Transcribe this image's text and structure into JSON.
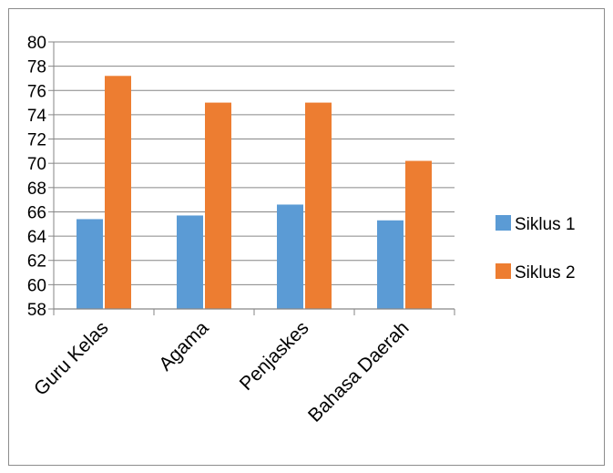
{
  "chart_data": {
    "type": "bar",
    "categories": [
      "Guru Kelas",
      "Agama",
      "Penjaskes",
      "Bahasa Daerah"
    ],
    "series": [
      {
        "name": "Siklus 1",
        "values": [
          65.4,
          65.7,
          66.6,
          65.3
        ],
        "color": "#5B9BD5"
      },
      {
        "name": "Siklus 2",
        "values": [
          77.2,
          75.0,
          75.0,
          70.2
        ],
        "color": "#ED7D31"
      }
    ],
    "ylim": [
      58,
      80
    ],
    "y_ticks": [
      58,
      60,
      62,
      64,
      66,
      68,
      70,
      72,
      74,
      76,
      78,
      80
    ],
    "grid": true,
    "legend": "right",
    "gridline_color": "#868686",
    "axis_color": "#868686"
  }
}
